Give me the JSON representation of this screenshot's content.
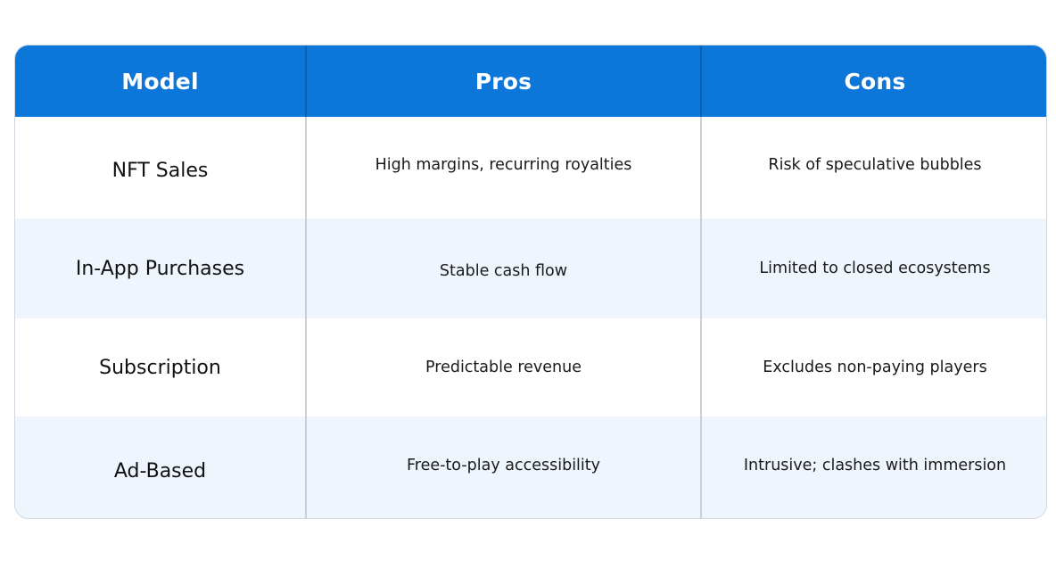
{
  "table": {
    "headers": [
      "Model",
      "Pros",
      "Cons"
    ],
    "rows": [
      [
        "NFT Sales",
        "High margins, recurring royalties",
        "Risk of speculative bubbles"
      ],
      [
        "In-App Purchases",
        "Stable cash flow",
        "Limited to closed ecosystems"
      ],
      [
        "Subscription",
        "Predictable revenue",
        "Excludes non-paying players"
      ],
      [
        "Ad-Based",
        "Free-to-play accessibility",
        "Intrusive; clashes with immersion"
      ]
    ]
  },
  "colors": {
    "header_bg": "#0d76d9",
    "header_text": "#ffffff",
    "row_tint": "#eff5fc",
    "border": "#cfd6e0"
  }
}
